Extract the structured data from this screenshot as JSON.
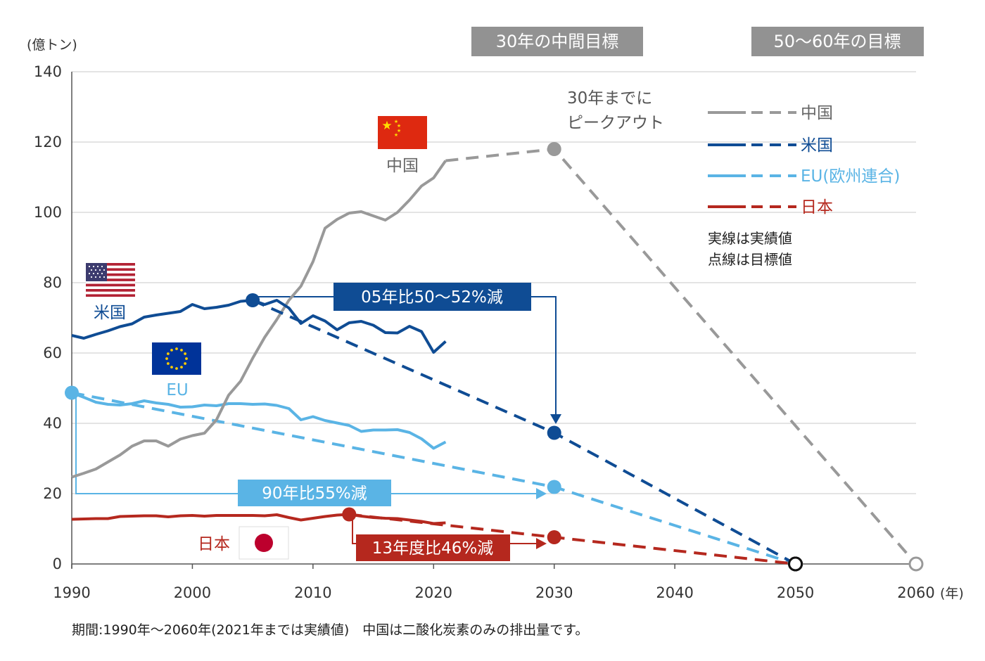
{
  "chart_data": {
    "type": "line",
    "y_unit": "(億トン)",
    "x_unit": "(年)",
    "xlim": [
      1990,
      2060
    ],
    "ylim": [
      0,
      140
    ],
    "x_ticks": [
      1990,
      2000,
      2010,
      2020,
      2030,
      2040,
      2050,
      2060
    ],
    "y_ticks": [
      0,
      20,
      40,
      60,
      80,
      100,
      120,
      140
    ],
    "grid": true,
    "period_headers": [
      "30年の中間目標",
      "50〜60年の目標"
    ],
    "legend_position": "top-right",
    "series": [
      {
        "name": "中国",
        "color": "#999999",
        "actual": [
          [
            1990,
            24.7
          ],
          [
            1991,
            25.8
          ],
          [
            1992,
            27.0
          ],
          [
            1993,
            29.0
          ],
          [
            1994,
            31.0
          ],
          [
            1995,
            33.5
          ],
          [
            1996,
            35.0
          ],
          [
            1997,
            35.0
          ],
          [
            1998,
            33.5
          ],
          [
            1999,
            35.5
          ],
          [
            2000,
            36.5
          ],
          [
            2001,
            37.2
          ],
          [
            2002,
            41.0
          ],
          [
            2003,
            48.0
          ],
          [
            2004,
            52.0
          ],
          [
            2005,
            58.5
          ],
          [
            2006,
            64.5
          ],
          [
            2007,
            69.5
          ],
          [
            2008,
            75.0
          ],
          [
            2009,
            79.0
          ],
          [
            2010,
            86.0
          ],
          [
            2011,
            95.5
          ],
          [
            2012,
            98.0
          ],
          [
            2013,
            99.8
          ],
          [
            2014,
            100.2
          ],
          [
            2015,
            99.0
          ],
          [
            2016,
            97.8
          ],
          [
            2017,
            100.0
          ],
          [
            2018,
            103.5
          ],
          [
            2019,
            107.5
          ],
          [
            2020,
            109.8
          ],
          [
            2021,
            114.7
          ]
        ],
        "target": [
          [
            2021,
            114.7
          ],
          [
            2030,
            118.0
          ],
          [
            2060,
            0
          ]
        ],
        "markers": [
          [
            2030,
            118.0
          ]
        ],
        "end_marker": [
          2060,
          0
        ]
      },
      {
        "name": "米国",
        "color": "#0f4c94",
        "actual": [
          [
            1990,
            65.0
          ],
          [
            1991,
            64.2
          ],
          [
            1992,
            65.3
          ],
          [
            1993,
            66.3
          ],
          [
            1994,
            67.5
          ],
          [
            1995,
            68.3
          ],
          [
            1996,
            70.2
          ],
          [
            1997,
            70.8
          ],
          [
            1998,
            71.3
          ],
          [
            1999,
            71.8
          ],
          [
            2000,
            73.8
          ],
          [
            2001,
            72.6
          ],
          [
            2002,
            73.0
          ],
          [
            2003,
            73.6
          ],
          [
            2004,
            74.7
          ],
          [
            2005,
            75.0
          ],
          [
            2006,
            73.8
          ],
          [
            2007,
            75.0
          ],
          [
            2008,
            72.8
          ],
          [
            2009,
            68.4
          ],
          [
            2010,
            70.6
          ],
          [
            2011,
            69.1
          ],
          [
            2012,
            66.6
          ],
          [
            2013,
            68.6
          ],
          [
            2014,
            69.0
          ],
          [
            2015,
            67.9
          ],
          [
            2016,
            65.8
          ],
          [
            2017,
            65.7
          ],
          [
            2018,
            67.6
          ],
          [
            2019,
            66.1
          ],
          [
            2020,
            60.2
          ],
          [
            2021,
            63.3
          ]
        ],
        "target": [
          [
            2005,
            75.0
          ],
          [
            2030,
            37.3
          ],
          [
            2050,
            0
          ]
        ],
        "markers": [
          [
            2005,
            75.0
          ],
          [
            2030,
            37.3
          ]
        ],
        "end_marker": [
          2050,
          0
        ]
      },
      {
        "name": "EU(欧州連合)",
        "color": "#5ab4e5",
        "actual": [
          [
            1990,
            48.7
          ],
          [
            1991,
            47.4
          ],
          [
            1992,
            46.0
          ],
          [
            1993,
            45.4
          ],
          [
            1994,
            45.2
          ],
          [
            1995,
            45.6
          ],
          [
            1996,
            46.4
          ],
          [
            1997,
            45.8
          ],
          [
            1998,
            45.4
          ],
          [
            1999,
            44.6
          ],
          [
            2000,
            44.7
          ],
          [
            2001,
            45.2
          ],
          [
            2002,
            45.0
          ],
          [
            2003,
            45.6
          ],
          [
            2004,
            45.6
          ],
          [
            2005,
            45.4
          ],
          [
            2006,
            45.5
          ],
          [
            2007,
            45.1
          ],
          [
            2008,
            44.2
          ],
          [
            2009,
            41.0
          ],
          [
            2010,
            41.9
          ],
          [
            2011,
            40.8
          ],
          [
            2012,
            40.1
          ],
          [
            2013,
            39.4
          ],
          [
            2014,
            37.7
          ],
          [
            2015,
            38.1
          ],
          [
            2016,
            38.1
          ],
          [
            2017,
            38.2
          ],
          [
            2018,
            37.4
          ],
          [
            2019,
            35.6
          ],
          [
            2020,
            32.9
          ],
          [
            2021,
            34.7
          ]
        ],
        "target": [
          [
            1990,
            48.7
          ],
          [
            2030,
            21.9
          ],
          [
            2050,
            0
          ]
        ],
        "markers": [
          [
            1990,
            48.7
          ],
          [
            2030,
            21.9
          ]
        ],
        "end_marker": [
          2050,
          0
        ]
      },
      {
        "name": "日本",
        "color": "#b5281e",
        "actual": [
          [
            1990,
            12.7
          ],
          [
            1991,
            12.8
          ],
          [
            1992,
            12.9
          ],
          [
            1993,
            12.9
          ],
          [
            1994,
            13.5
          ],
          [
            1995,
            13.6
          ],
          [
            1996,
            13.7
          ],
          [
            1997,
            13.7
          ],
          [
            1998,
            13.4
          ],
          [
            1999,
            13.7
          ],
          [
            2000,
            13.8
          ],
          [
            2001,
            13.6
          ],
          [
            2002,
            13.8
          ],
          [
            2003,
            13.8
          ],
          [
            2004,
            13.8
          ],
          [
            2005,
            13.8
          ],
          [
            2006,
            13.7
          ],
          [
            2007,
            14.0
          ],
          [
            2008,
            13.2
          ],
          [
            2009,
            12.5
          ],
          [
            2010,
            13.0
          ],
          [
            2011,
            13.5
          ],
          [
            2012,
            13.9
          ],
          [
            2013,
            14.1
          ],
          [
            2014,
            13.6
          ],
          [
            2015,
            13.2
          ],
          [
            2016,
            13.0
          ],
          [
            2017,
            12.9
          ],
          [
            2018,
            12.5
          ],
          [
            2019,
            12.1
          ],
          [
            2020,
            11.5
          ],
          [
            2021,
            11.7
          ]
        ],
        "target": [
          [
            2013,
            14.1
          ],
          [
            2030,
            7.6
          ],
          [
            2050,
            0
          ]
        ],
        "markers": [
          [
            2013,
            14.1
          ],
          [
            2030,
            7.6
          ]
        ],
        "end_marker": [
          2050,
          0
        ]
      }
    ],
    "legend": {
      "entries": [
        "中国",
        "米国",
        "EU(欧州連合)",
        "日本"
      ],
      "notes": [
        "実線は実績値",
        "点線は目標値"
      ]
    },
    "annotations": {
      "china_peak": [
        "30年までに",
        "ピークアウト"
      ],
      "us_target": "05年比50〜52%減",
      "eu_target": "90年比55%減",
      "japan_target": "13年度比46%減"
    },
    "country_labels": {
      "china": "中国",
      "us": "米国",
      "eu": "EU",
      "japan": "日本"
    }
  },
  "footnote": "期間:1990年〜2060年(2021年までは実績値)　中国は二酸化炭素のみの排出量です。"
}
